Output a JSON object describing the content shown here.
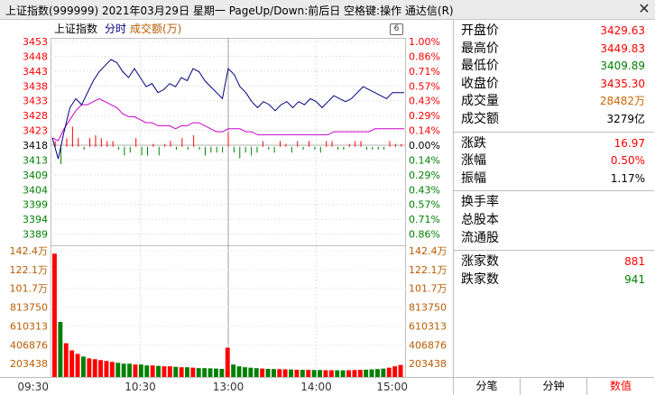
{
  "window": {
    "title": "上证指数(999999)  2021年03月29日  星期一  PageUp/Down:前后日  空格键:操作  通达信(R)",
    "close_label": "✕"
  },
  "chart_header": {
    "name": "上证指数",
    "fenshi": "分时",
    "volume_label": "成交额(万)",
    "gear": "6"
  },
  "colors": {
    "up": "#ff0000",
    "down": "#008000",
    "price_line": "#00007f",
    "avg_line": "#cc00cc",
    "volume_axis": "#b85c00"
  },
  "chart_data": {
    "type": "line",
    "pre_close": 3418,
    "price_ticks": [
      "3453",
      "3448",
      "3443",
      "3438",
      "3433",
      "3428",
      "3423",
      "3418",
      "3413",
      "3409",
      "3404",
      "3399",
      "3394",
      "3389"
    ],
    "pct_ticks": [
      "1.00%",
      "0.86%",
      "0.71%",
      "0.57%",
      "0.43%",
      "0.29%",
      "0.14%",
      "0.00%",
      "0.14%",
      "0.29%",
      "0.43%",
      "0.57%",
      "0.71%",
      "0.86%"
    ],
    "volume_ticks_left": [
      "142.4万",
      "122.1万",
      "101.7万",
      "813750",
      "610313",
      "406876",
      "203438"
    ],
    "volume_ticks_right": [
      "142.4万",
      "122.1万",
      "101.7万",
      "813750",
      "610313",
      "406876",
      "203438"
    ],
    "time_labels": [
      "09:30",
      "10:30",
      "13:00",
      "14:00",
      "15:00"
    ],
    "price_series": {
      "name": "",
      "x": [
        0,
        4,
        8,
        12,
        16,
        20,
        24,
        28,
        32,
        36,
        40,
        44,
        48,
        52,
        56,
        60,
        64,
        68,
        72,
        76,
        80,
        84,
        88,
        92,
        96,
        100,
        104,
        108,
        112,
        116,
        120,
        124,
        128,
        132,
        136,
        140,
        144,
        148,
        152,
        156,
        160,
        164,
        168,
        172,
        176,
        180,
        184,
        188,
        192,
        196,
        200,
        204,
        208,
        212,
        216,
        220,
        224,
        228,
        232,
        236,
        240
      ],
      "y": [
        3421,
        3414,
        3423,
        3431,
        3434,
        3432,
        3436,
        3440,
        3443,
        3445,
        3447,
        3446,
        3443,
        3441,
        3444,
        3441,
        3438,
        3439,
        3436,
        3437,
        3439,
        3438,
        3441,
        3440,
        3444,
        3443,
        3440,
        3438,
        3436,
        3434,
        3444,
        3442,
        3438,
        3436,
        3433,
        3431,
        3433,
        3432,
        3430,
        3432,
        3433,
        3431,
        3433,
        3432,
        3434,
        3433,
        3431,
        3433,
        3435,
        3434,
        3433,
        3434,
        3436,
        3438,
        3437,
        3436,
        3435,
        3434,
        3436,
        3436,
        3436
      ]
    },
    "avg_series": {
      "name": "",
      "x": [
        0,
        4,
        8,
        12,
        16,
        20,
        24,
        28,
        32,
        36,
        40,
        44,
        48,
        52,
        56,
        60,
        64,
        68,
        72,
        76,
        80,
        84,
        88,
        92,
        96,
        100,
        104,
        108,
        112,
        116,
        120,
        124,
        128,
        132,
        136,
        140,
        144,
        148,
        152,
        156,
        160,
        164,
        168,
        172,
        176,
        180,
        184,
        188,
        192,
        196,
        200,
        204,
        208,
        212,
        216,
        220,
        224,
        228,
        232,
        236,
        240
      ],
      "y": [
        3421,
        3420,
        3424,
        3427,
        3430,
        3432,
        3432,
        3433,
        3434,
        3433,
        3432,
        3431,
        3429,
        3428,
        3428,
        3427,
        3426,
        3426,
        3425,
        3425,
        3425,
        3424,
        3425,
        3425,
        3426,
        3426,
        3425,
        3424,
        3423,
        3423,
        3424,
        3424,
        3424,
        3423,
        3423,
        3422,
        3422,
        3422,
        3422,
        3422,
        3422,
        3422,
        3422,
        3422,
        3422,
        3422,
        3422,
        3422,
        3423,
        3423,
        3423,
        3423,
        3423,
        3423,
        3423,
        3424,
        3424,
        3424,
        3424,
        3424,
        3424
      ]
    },
    "momentum": [
      2,
      -6,
      3,
      7,
      3,
      -1,
      3,
      4,
      3,
      2,
      2,
      -1,
      -3,
      -2,
      3,
      -3,
      -3,
      1,
      -3,
      1,
      2,
      -1,
      3,
      -1,
      4,
      -1,
      -3,
      -2,
      -2,
      -2,
      5,
      -2,
      -4,
      -2,
      -3,
      -2,
      2,
      -1,
      -2,
      2,
      1,
      -2,
      2,
      -1,
      2,
      -1,
      -2,
      2,
      2,
      -1,
      -1,
      1,
      2,
      2,
      -1,
      -1,
      -1,
      -1,
      2,
      1,
      1
    ],
    "volume": [
      1390000,
      620000,
      380000,
      300000,
      260000,
      230000,
      210000,
      200000,
      190000,
      180000,
      170000,
      160000,
      150000,
      150000,
      140000,
      140000,
      130000,
      130000,
      125000,
      120000,
      120000,
      115000,
      110000,
      110000,
      105000,
      100000,
      100000,
      98000,
      95000,
      92000,
      330000,
      140000,
      120000,
      110000,
      105000,
      100000,
      95000,
      92000,
      90000,
      88000,
      86000,
      84000,
      82000,
      80000,
      80000,
      78000,
      78000,
      76000,
      76000,
      75000,
      75000,
      76000,
      78000,
      80000,
      82000,
      85000,
      90000,
      95000,
      105000,
      120000,
      135000
    ],
    "ylim_price": [
      3389,
      3453
    ],
    "ylim_volume": [
      0,
      1424000
    ]
  },
  "panel": {
    "rows": [
      {
        "label": "开盘价",
        "value": "3429.63",
        "color": "#ff0000"
      },
      {
        "label": "最高价",
        "value": "3449.83",
        "color": "#ff0000"
      },
      {
        "label": "最低价",
        "value": "3409.89",
        "color": "#008000"
      },
      {
        "label": "收盘价",
        "value": "3435.30",
        "color": "#ff0000"
      },
      {
        "label": "成交量",
        "value": "28482万",
        "color": "#cc6600"
      },
      {
        "label": "成交额",
        "value": "3279亿",
        "color": "#000000"
      }
    ],
    "rows2": [
      {
        "label": "涨跌",
        "value": "16.97",
        "color": "#ff0000"
      },
      {
        "label": "涨幅",
        "value": "0.50%",
        "color": "#ff0000"
      },
      {
        "label": "振幅",
        "value": "1.17%",
        "color": "#000000"
      }
    ],
    "rows3": [
      {
        "label": "换手率",
        "value": ""
      },
      {
        "label": "总股本",
        "value": ""
      },
      {
        "label": "流通股",
        "value": ""
      }
    ],
    "rows4": [
      {
        "label": "涨家数",
        "value": "881",
        "color": "#ff0000"
      },
      {
        "label": "跌家数",
        "value": "941",
        "color": "#008000"
      }
    ],
    "tabs": [
      "分笔",
      "分钟",
      "数值"
    ]
  }
}
